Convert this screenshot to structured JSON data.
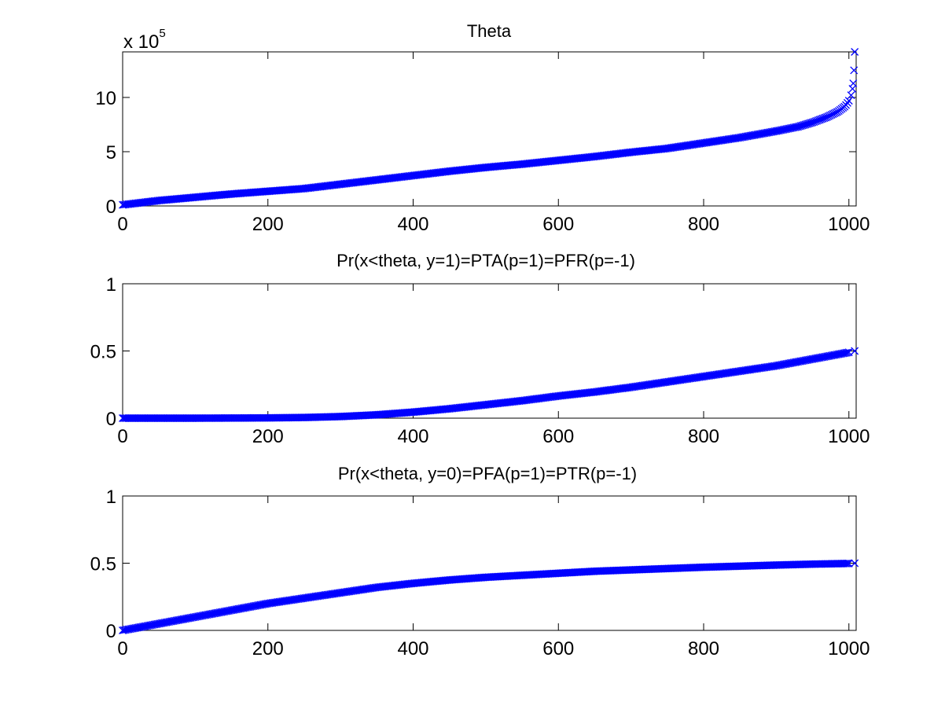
{
  "chart_data": [
    {
      "type": "scatter",
      "title": "Theta",
      "y_multiplier_label": "x 10",
      "y_multiplier_exponent": "5",
      "xlim": [
        0,
        1010
      ],
      "ylim": [
        0,
        1420000
      ],
      "x_ticks": [
        0,
        200,
        400,
        600,
        800,
        1000
      ],
      "x_tick_labels": [
        "0",
        "200",
        "400",
        "600",
        "800",
        "1000"
      ],
      "y_ticks": [
        0,
        500000,
        1000000
      ],
      "y_tick_labels": [
        "0",
        "5",
        "10"
      ],
      "grid": false,
      "marker": "x",
      "color": "#0000ff",
      "points": [
        [
          0,
          10000
        ],
        [
          50,
          50000
        ],
        [
          100,
          80000
        ],
        [
          150,
          110000
        ],
        [
          200,
          135000
        ],
        [
          250,
          160000
        ],
        [
          300,
          200000
        ],
        [
          350,
          240000
        ],
        [
          400,
          280000
        ],
        [
          450,
          320000
        ],
        [
          500,
          355000
        ],
        [
          550,
          385000
        ],
        [
          600,
          420000
        ],
        [
          650,
          455000
        ],
        [
          700,
          495000
        ],
        [
          750,
          530000
        ],
        [
          800,
          580000
        ],
        [
          850,
          630000
        ],
        [
          900,
          690000
        ],
        [
          930,
          730000
        ],
        [
          950,
          770000
        ],
        [
          970,
          820000
        ],
        [
          985,
          870000
        ],
        [
          995,
          920000
        ],
        [
          1000,
          970000
        ],
        [
          1003,
          1020000
        ],
        [
          1005,
          1080000
        ],
        [
          1006,
          1130000
        ],
        [
          1007,
          1250000
        ],
        [
          1008,
          1420000
        ]
      ]
    },
    {
      "type": "scatter",
      "title": "Pr(x<theta, y=1)=PTA(p=1)=PFR(p=-1)",
      "xlim": [
        0,
        1010
      ],
      "ylim": [
        0,
        1
      ],
      "x_ticks": [
        0,
        200,
        400,
        600,
        800,
        1000
      ],
      "x_tick_labels": [
        "0",
        "200",
        "400",
        "600",
        "800",
        "1000"
      ],
      "y_ticks": [
        0,
        0.5,
        1
      ],
      "y_tick_labels": [
        "0",
        "0.5",
        "1"
      ],
      "grid": false,
      "marker": "x",
      "color": "#0000ff",
      "points": [
        [
          0,
          0.0
        ],
        [
          100,
          0.0
        ],
        [
          200,
          0.002
        ],
        [
          250,
          0.005
        ],
        [
          300,
          0.012
        ],
        [
          350,
          0.025
        ],
        [
          400,
          0.045
        ],
        [
          450,
          0.07
        ],
        [
          500,
          0.1
        ],
        [
          550,
          0.13
        ],
        [
          600,
          0.165
        ],
        [
          650,
          0.195
        ],
        [
          700,
          0.23
        ],
        [
          750,
          0.27
        ],
        [
          800,
          0.31
        ],
        [
          850,
          0.35
        ],
        [
          900,
          0.39
        ],
        [
          950,
          0.44
        ],
        [
          1000,
          0.49
        ],
        [
          1008,
          0.5
        ]
      ]
    },
    {
      "type": "scatter",
      "title": "Pr(x<theta, y=0)=PFA(p=1)=PTR(p=-1)",
      "xlim": [
        0,
        1010
      ],
      "ylim": [
        0,
        1
      ],
      "x_ticks": [
        0,
        200,
        400,
        600,
        800,
        1000
      ],
      "x_tick_labels": [
        "0",
        "200",
        "400",
        "600",
        "800",
        "1000"
      ],
      "y_ticks": [
        0,
        0.5,
        1
      ],
      "y_tick_labels": [
        "0",
        "0.5",
        "1"
      ],
      "grid": false,
      "marker": "x",
      "color": "#0000ff",
      "points": [
        [
          0,
          0.0
        ],
        [
          50,
          0.05
        ],
        [
          100,
          0.1
        ],
        [
          150,
          0.15
        ],
        [
          200,
          0.2
        ],
        [
          250,
          0.24
        ],
        [
          300,
          0.28
        ],
        [
          350,
          0.32
        ],
        [
          400,
          0.35
        ],
        [
          450,
          0.375
        ],
        [
          500,
          0.395
        ],
        [
          550,
          0.41
        ],
        [
          600,
          0.425
        ],
        [
          650,
          0.44
        ],
        [
          700,
          0.45
        ],
        [
          750,
          0.46
        ],
        [
          800,
          0.47
        ],
        [
          850,
          0.478
        ],
        [
          900,
          0.486
        ],
        [
          950,
          0.493
        ],
        [
          1000,
          0.498
        ],
        [
          1008,
          0.5
        ]
      ]
    }
  ]
}
